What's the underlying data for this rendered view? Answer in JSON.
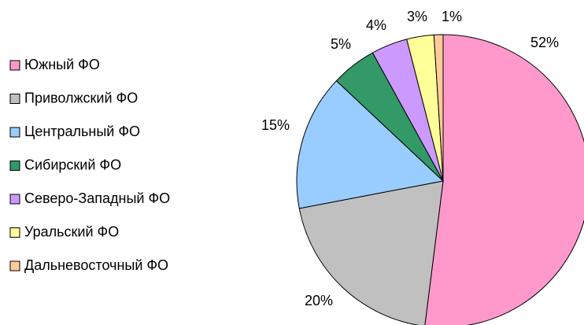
{
  "chart_data": {
    "type": "pie",
    "categories": [
      "Южный ФО",
      "Приволжский ФО",
      "Центральный ФО",
      "Сибирский ФО",
      "Северо-Западный ФО",
      "Уральский ФО",
      "Дальневосточный ФО"
    ],
    "values": [
      52,
      20,
      15,
      5,
      4,
      3,
      1
    ],
    "value_labels": [
      "52%",
      "20%",
      "15%",
      "5%",
      "4%",
      "3%",
      "1%"
    ],
    "colors": [
      "#ff99cc",
      "#c0c0c0",
      "#99ccff",
      "#339966",
      "#cc99ff",
      "#ffff99",
      "#ffcc99"
    ],
    "legend": "left"
  }
}
